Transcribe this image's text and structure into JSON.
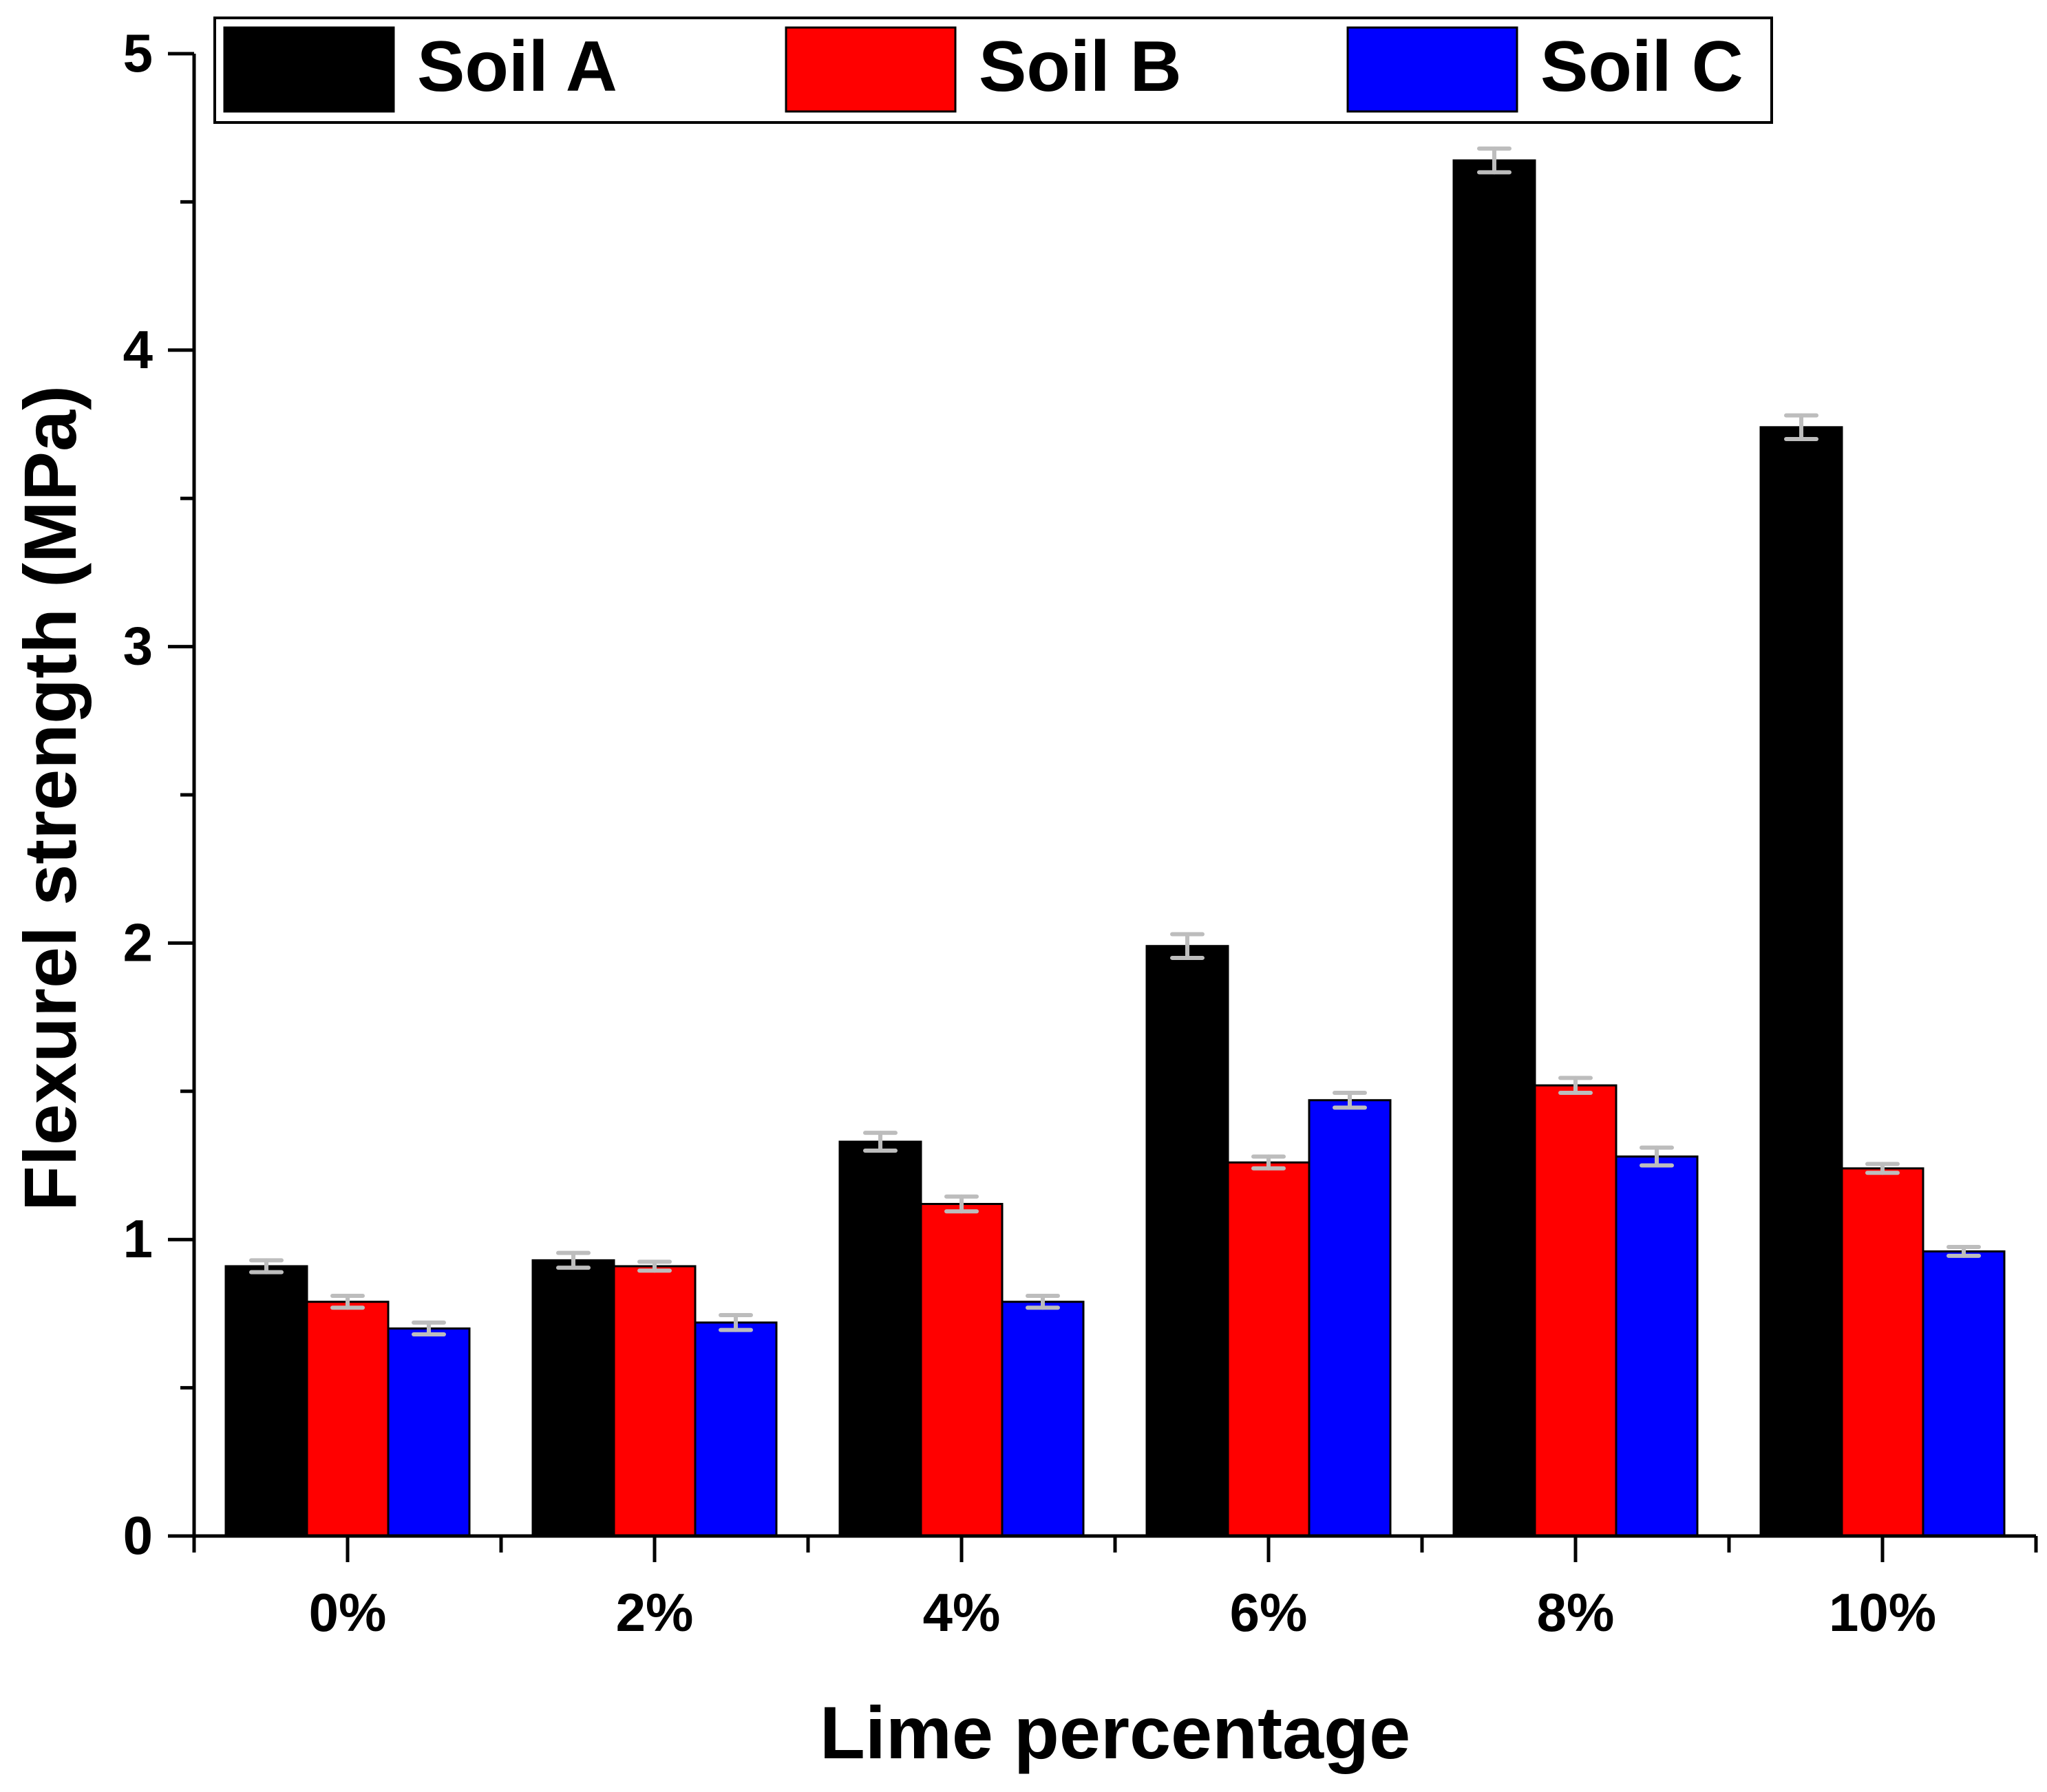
{
  "chart_data": {
    "type": "bar",
    "title": "",
    "xlabel": "Lime percentage",
    "ylabel": "Flexurel strength (MPa)",
    "categories": [
      "0%",
      "2%",
      "4%",
      "6%",
      "8%",
      "10%"
    ],
    "series": [
      {
        "name": "Soil A",
        "color": "#000000",
        "values": [
          0.91,
          0.93,
          1.33,
          1.99,
          4.64,
          3.74
        ],
        "errors": [
          0.02,
          0.025,
          0.03,
          0.04,
          0.04,
          0.04
        ]
      },
      {
        "name": "Soil B",
        "color": "#ff0000",
        "values": [
          0.79,
          0.91,
          1.12,
          1.26,
          1.52,
          1.24
        ],
        "errors": [
          0.02,
          0.015,
          0.025,
          0.02,
          0.025,
          0.015
        ]
      },
      {
        "name": "Soil C",
        "color": "#0000ff",
        "values": [
          0.7,
          0.72,
          0.79,
          1.47,
          1.28,
          0.96
        ],
        "errors": [
          0.02,
          0.025,
          0.02,
          0.025,
          0.03,
          0.015
        ]
      }
    ],
    "error_bar_color": "#bdbdbd",
    "ylim": [
      0,
      5
    ],
    "yticks": [
      0,
      1,
      2,
      3,
      4,
      5
    ],
    "yticks_minor": [
      0.5,
      1.5,
      2.5,
      3.5,
      4.5
    ],
    "grid": false,
    "legend_position": "top"
  }
}
